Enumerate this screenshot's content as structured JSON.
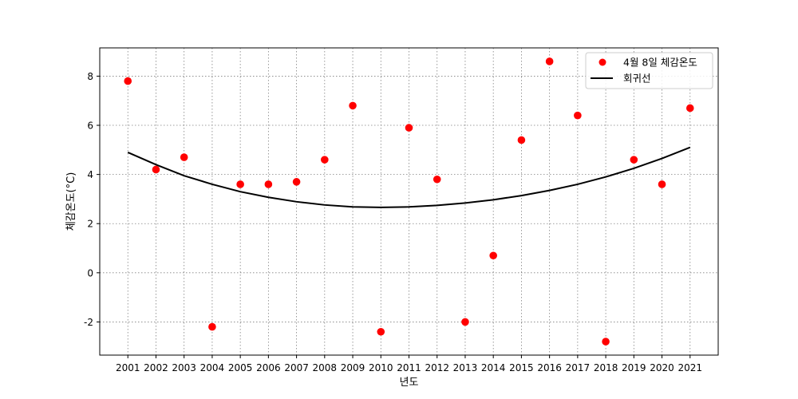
{
  "chart_data": {
    "type": "scatter",
    "title": "",
    "xlabel": "년도",
    "ylabel": "체감온도(°C)",
    "x": [
      2001,
      2002,
      2003,
      2004,
      2005,
      2006,
      2007,
      2008,
      2009,
      2010,
      2011,
      2012,
      2013,
      2014,
      2015,
      2016,
      2017,
      2018,
      2019,
      2020,
      2021
    ],
    "xticks": [
      "2001",
      "2002",
      "2003",
      "2004",
      "2005",
      "2006",
      "2007",
      "2008",
      "2009",
      "2010",
      "2011",
      "2012",
      "2013",
      "2014",
      "2015",
      "2016",
      "2017",
      "2018",
      "2019",
      "2020",
      "2021"
    ],
    "yticks": [
      -2,
      0,
      2,
      4,
      6,
      8
    ],
    "ytick_labels": [
      "-2",
      "0",
      "2",
      "4",
      "6",
      "8"
    ],
    "xlim": [
      2000.0,
      2022.0
    ],
    "ylim": [
      -3.35,
      9.15
    ],
    "grid": true,
    "legend_position": "top-right",
    "series": [
      {
        "name": "4월 8일 체감온도",
        "kind": "scatter",
        "color": "#ff0000",
        "values": [
          7.8,
          4.2,
          4.7,
          -2.2,
          3.6,
          3.6,
          3.7,
          4.6,
          6.8,
          -2.4,
          5.9,
          3.8,
          -2.0,
          0.7,
          5.4,
          8.6,
          6.4,
          -2.8,
          4.6,
          3.6,
          6.7
        ]
      },
      {
        "name": "회귀선",
        "kind": "line",
        "color": "#000000",
        "values": [
          4.9,
          4.4,
          3.95,
          3.6,
          3.3,
          3.07,
          2.89,
          2.76,
          2.68,
          2.66,
          2.68,
          2.74,
          2.84,
          2.97,
          3.14,
          3.35,
          3.6,
          3.9,
          4.25,
          4.65,
          5.1
        ]
      }
    ]
  }
}
